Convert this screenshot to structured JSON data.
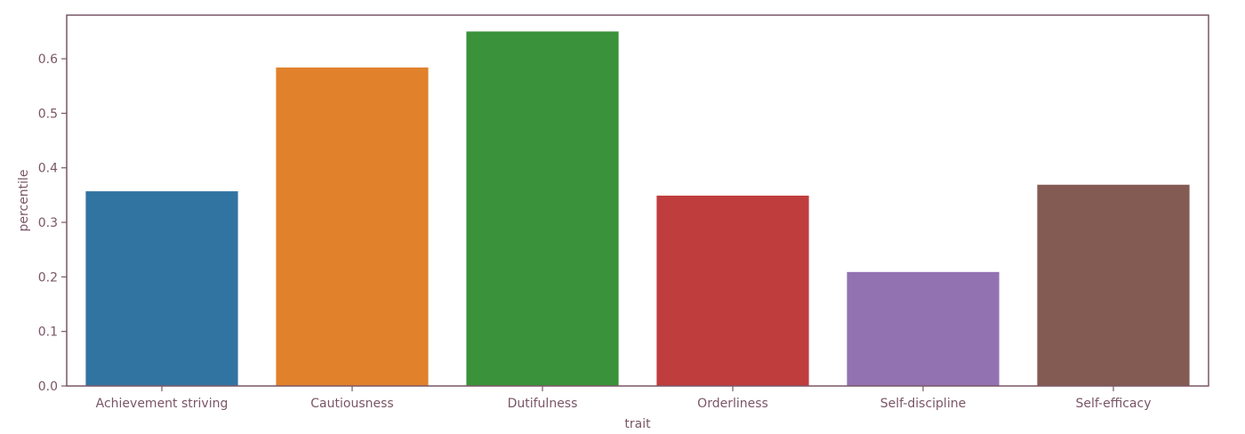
{
  "chart_data": {
    "type": "bar",
    "title": "",
    "xlabel": "trait",
    "ylabel": "percentile",
    "categories": [
      "Achievement striving",
      "Cautiousness",
      "Dutifulness",
      "Orderliness",
      "Self-discipline",
      "Self-efficacy"
    ],
    "values": [
      0.357,
      0.584,
      0.65,
      0.349,
      0.209,
      0.369
    ],
    "colors": [
      "#3274a1",
      "#e1812c",
      "#3a923a",
      "#c03d3e",
      "#9372b2",
      "#845b53"
    ],
    "ylim": [
      0,
      0.68
    ],
    "yticks": [
      "0.0",
      "0.1",
      "0.2",
      "0.3",
      "0.4",
      "0.5",
      "0.6"
    ],
    "grid": false,
    "legend": false,
    "text_color": "#7a5666",
    "spine_color": "#7a5666"
  }
}
